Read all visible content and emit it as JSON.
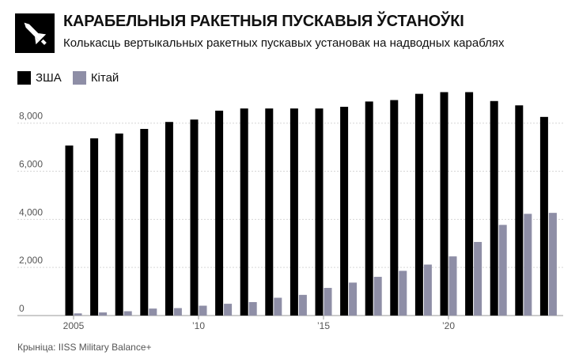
{
  "header": {
    "title": "КАРАБЕЛЬНЫЯ РАКЕТНЫЯ ПУСКАВЫЯ ЎСТАНОЎКІ",
    "subtitle": "Колькасць вертыкальных ракетных пускавых установак на надводных караблях",
    "icon": "missile-icon"
  },
  "source": "Крыніца: IISS Military Balance+",
  "colors": {
    "usa": "#000000",
    "china": "#8e8ea6",
    "grid": "#d6d6d6",
    "axis": "#555555"
  },
  "chart_data": {
    "type": "bar",
    "title": "КАРАБЕЛЬНЫЯ РАКЕТНЫЯ ПУСКАВЫЯ ЎСТАНОЎКІ",
    "subtitle": "Колькасць вертыкальных ракетных пускавых установак на надводных караблях",
    "categories": [
      2005,
      2006,
      2007,
      2008,
      2009,
      2010,
      2011,
      2012,
      2013,
      2014,
      2015,
      2016,
      2017,
      2018,
      2019,
      2020,
      2021,
      2022,
      2023,
      2024
    ],
    "x_tick_labels": [
      {
        "year": 2005,
        "label": "2005"
      },
      {
        "year": 2010,
        "label": "’10"
      },
      {
        "year": 2015,
        "label": "’15"
      },
      {
        "year": 2020,
        "label": "’20"
      }
    ],
    "y_tick_labels": [
      "0",
      "2,000",
      "4,000",
      "6,000",
      "8,000"
    ],
    "y_ticks": [
      0,
      2000,
      4000,
      6000,
      8000
    ],
    "ylim": [
      0,
      9800
    ],
    "grid": true,
    "legend_position": "top-left",
    "series": [
      {
        "name": "ЗША",
        "color": "#000000",
        "values": [
          7070,
          7370,
          7570,
          7760,
          8050,
          8150,
          8520,
          8610,
          8610,
          8610,
          8610,
          8680,
          8900,
          8960,
          9220,
          9290,
          9290,
          8920,
          8740,
          8260
        ]
      },
      {
        "name": "Кітай",
        "color": "#8e8ea6",
        "values": [
          90,
          130,
          180,
          290,
          310,
          410,
          490,
          560,
          740,
          860,
          1150,
          1370,
          1610,
          1860,
          2120,
          2460,
          3060,
          3770,
          4230,
          4270
        ]
      }
    ]
  }
}
